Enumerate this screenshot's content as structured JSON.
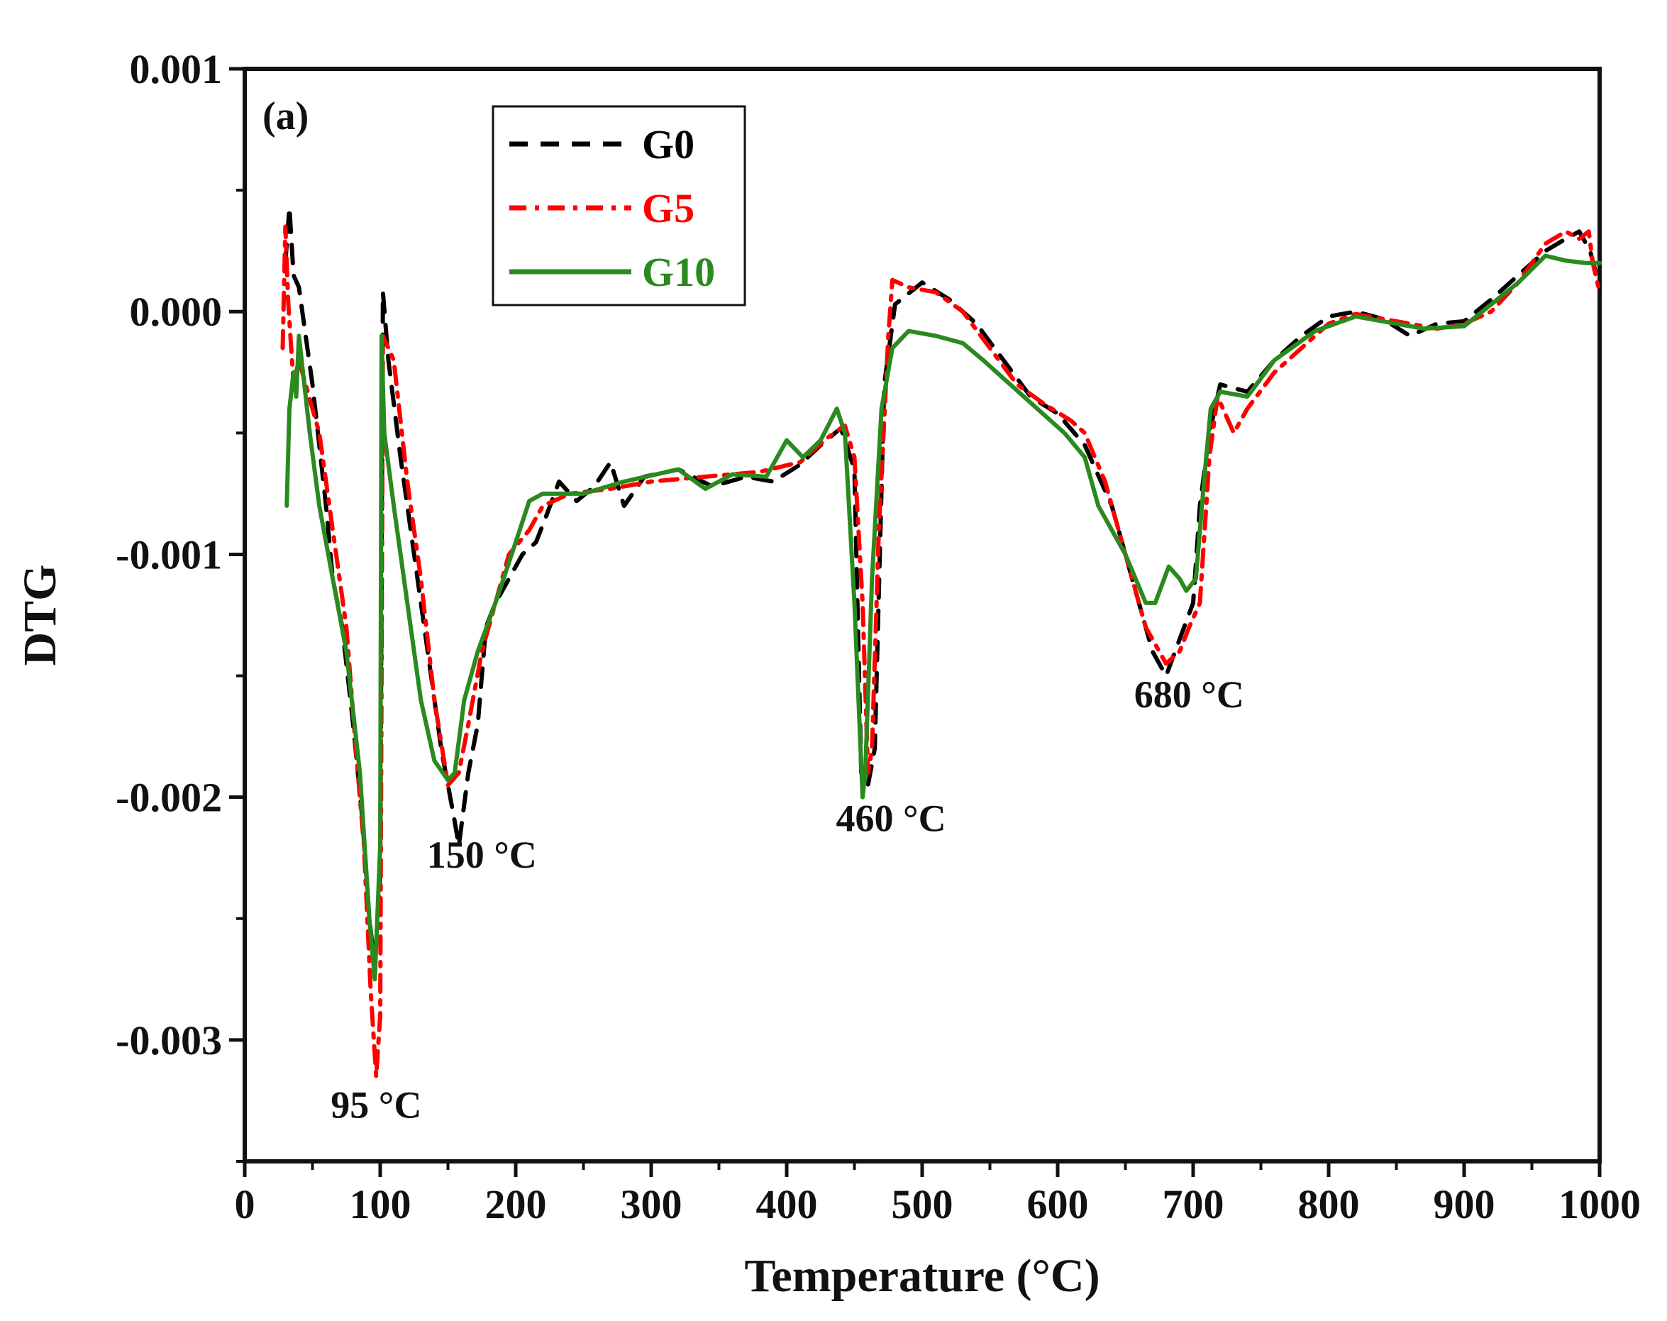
{
  "chart_data": {
    "type": "line",
    "panel_label": "(a)",
    "xlabel": "Temperature (°C)",
    "ylabel": "DTG",
    "xlim": [
      0,
      1000
    ],
    "ylim": [
      -0.0035,
      0.001
    ],
    "x_ticks": [
      0,
      100,
      200,
      300,
      400,
      500,
      600,
      700,
      800,
      900,
      1000
    ],
    "x_tick_labels": [
      "0",
      "100",
      "200",
      "300",
      "400",
      "500",
      "600",
      "700",
      "800",
      "900",
      "1000"
    ],
    "y_ticks": [
      0.001,
      0.0,
      -0.001,
      -0.002,
      -0.003
    ],
    "y_tick_labels": [
      "0.001",
      "0.000",
      "-0.001",
      "-0.002",
      "-0.003"
    ],
    "grid": false,
    "legend_position": "top-left",
    "series": [
      {
        "name": "G0",
        "color": "#000000",
        "style": "dashed",
        "points": [
          [
            30,
            0.0002
          ],
          [
            33,
            0.00043
          ],
          [
            36,
            0.00015
          ],
          [
            40,
            0.0001
          ],
          [
            45,
            -0.0001
          ],
          [
            50,
            -0.0003
          ],
          [
            55,
            -0.00055
          ],
          [
            60,
            -0.0008
          ],
          [
            65,
            -0.0011
          ],
          [
            72,
            -0.0013
          ],
          [
            80,
            -0.0017
          ],
          [
            87,
            -0.0021
          ],
          [
            92,
            -0.0025
          ],
          [
            96,
            -0.0027
          ],
          [
            100,
            -0.0023
          ],
          [
            102,
            8e-05
          ],
          [
            106,
            -0.0002
          ],
          [
            115,
            -0.0006
          ],
          [
            125,
            -0.001
          ],
          [
            135,
            -0.0014
          ],
          [
            145,
            -0.0018
          ],
          [
            155,
            -0.0021
          ],
          [
            158,
            -0.0022
          ],
          [
            165,
            -0.0019
          ],
          [
            172,
            -0.0017
          ],
          [
            178,
            -0.0013
          ],
          [
            185,
            -0.0012
          ],
          [
            195,
            -0.0011
          ],
          [
            205,
            -0.001
          ],
          [
            215,
            -0.00095
          ],
          [
            222,
            -0.00085
          ],
          [
            232,
            -0.0007
          ],
          [
            245,
            -0.00078
          ],
          [
            258,
            -0.00072
          ],
          [
            270,
            -0.00062
          ],
          [
            280,
            -0.0008
          ],
          [
            295,
            -0.00068
          ],
          [
            320,
            -0.00065
          ],
          [
            345,
            -0.00072
          ],
          [
            370,
            -0.00068
          ],
          [
            390,
            -0.0007
          ],
          [
            410,
            -0.00063
          ],
          [
            425,
            -0.00055
          ],
          [
            440,
            -0.00048
          ],
          [
            450,
            -0.00065
          ],
          [
            455,
            -0.0019
          ],
          [
            460,
            -0.00195
          ],
          [
            465,
            -0.0018
          ],
          [
            472,
            -0.0003
          ],
          [
            480,
            3e-05
          ],
          [
            500,
            0.00012
          ],
          [
            520,
            5e-05
          ],
          [
            540,
            -5e-05
          ],
          [
            560,
            -0.0002
          ],
          [
            580,
            -0.00035
          ],
          [
            600,
            -0.00042
          ],
          [
            620,
            -0.00055
          ],
          [
            640,
            -0.0008
          ],
          [
            655,
            -0.0011
          ],
          [
            670,
            -0.0014
          ],
          [
            680,
            -0.0015
          ],
          [
            690,
            -0.00135
          ],
          [
            700,
            -0.0012
          ],
          [
            705,
            -0.0008
          ],
          [
            712,
            -0.0005
          ],
          [
            720,
            -0.0003
          ],
          [
            740,
            -0.00033
          ],
          [
            760,
            -0.0002
          ],
          [
            780,
            -0.0001
          ],
          [
            800,
            -2e-05
          ],
          [
            820,
            0.0
          ],
          [
            840,
            -3e-05
          ],
          [
            860,
            -0.0001
          ],
          [
            880,
            -5e-05
          ],
          [
            900,
            -4e-05
          ],
          [
            920,
            5e-05
          ],
          [
            940,
            0.00015
          ],
          [
            960,
            0.00025
          ],
          [
            975,
            0.0003
          ],
          [
            985,
            0.00033
          ],
          [
            993,
            0.00025
          ],
          [
            1000,
            0.0001
          ]
        ]
      },
      {
        "name": "G5",
        "color": "#ff0000",
        "style": "dashdot",
        "points": [
          [
            28,
            -0.00015
          ],
          [
            30,
            0.00035
          ],
          [
            32,
            5e-05
          ],
          [
            36,
            -0.0003
          ],
          [
            40,
            -0.0002
          ],
          [
            45,
            -0.0003
          ],
          [
            55,
            -0.0005
          ],
          [
            65,
            -0.0009
          ],
          [
            75,
            -0.0013
          ],
          [
            82,
            -0.0018
          ],
          [
            88,
            -0.0022
          ],
          [
            93,
            -0.0028
          ],
          [
            97,
            -0.00315
          ],
          [
            100,
            -0.0029
          ],
          [
            102,
            -0.0001
          ],
          [
            110,
            -0.0002
          ],
          [
            120,
            -0.0007
          ],
          [
            130,
            -0.0011
          ],
          [
            140,
            -0.0016
          ],
          [
            150,
            -0.00195
          ],
          [
            158,
            -0.0019
          ],
          [
            165,
            -0.0017
          ],
          [
            175,
            -0.0014
          ],
          [
            185,
            -0.0012
          ],
          [
            195,
            -0.001
          ],
          [
            210,
            -0.0009
          ],
          [
            220,
            -0.0008
          ],
          [
            240,
            -0.00075
          ],
          [
            270,
            -0.00073
          ],
          [
            300,
            -0.0007
          ],
          [
            340,
            -0.00068
          ],
          [
            380,
            -0.00066
          ],
          [
            410,
            -0.00062
          ],
          [
            430,
            -0.00052
          ],
          [
            443,
            -0.00047
          ],
          [
            450,
            -0.0006
          ],
          [
            456,
            -0.0012
          ],
          [
            460,
            -0.0019
          ],
          [
            463,
            -0.0018
          ],
          [
            468,
            -0.0009
          ],
          [
            475,
            -0.0001
          ],
          [
            478,
            0.00013
          ],
          [
            490,
            0.0001
          ],
          [
            510,
            8e-05
          ],
          [
            530,
            0.0
          ],
          [
            550,
            -0.00015
          ],
          [
            570,
            -0.0003
          ],
          [
            590,
            -0.00038
          ],
          [
            610,
            -0.00045
          ],
          [
            620,
            -0.0005
          ],
          [
            635,
            -0.0007
          ],
          [
            650,
            -0.001
          ],
          [
            665,
            -0.0013
          ],
          [
            680,
            -0.00145
          ],
          [
            690,
            -0.0014
          ],
          [
            697,
            -0.0013
          ],
          [
            705,
            -0.0012
          ],
          [
            712,
            -0.0006
          ],
          [
            718,
            -0.00035
          ],
          [
            730,
            -0.0005
          ],
          [
            740,
            -0.0004
          ],
          [
            760,
            -0.00025
          ],
          [
            780,
            -0.00015
          ],
          [
            800,
            -5e-05
          ],
          [
            820,
            -1e-05
          ],
          [
            840,
            -3e-05
          ],
          [
            860,
            -5e-05
          ],
          [
            880,
            -7e-05
          ],
          [
            900,
            -5e-05
          ],
          [
            920,
            0.0
          ],
          [
            940,
            0.00012
          ],
          [
            960,
            0.00028
          ],
          [
            975,
            0.00033
          ],
          [
            985,
            0.0003
          ],
          [
            992,
            0.00033
          ],
          [
            995,
            0.0002
          ],
          [
            1000,
            8e-05
          ]
        ]
      },
      {
        "name": "G10",
        "color": "#2a8a1e",
        "style": "solid",
        "points": [
          [
            31,
            -0.0008
          ],
          [
            33,
            -0.0004
          ],
          [
            36,
            -0.00025
          ],
          [
            38,
            -0.00035
          ],
          [
            40,
            -0.0001
          ],
          [
            43,
            -0.00025
          ],
          [
            48,
            -0.0005
          ],
          [
            55,
            -0.0008
          ],
          [
            65,
            -0.0011
          ],
          [
            75,
            -0.0014
          ],
          [
            85,
            -0.0019
          ],
          [
            92,
            -0.0025
          ],
          [
            96,
            -0.00275
          ],
          [
            100,
            -0.0022
          ],
          [
            101,
            -0.0001
          ],
          [
            103,
            -0.0005
          ],
          [
            110,
            -0.0008
          ],
          [
            120,
            -0.0012
          ],
          [
            130,
            -0.0016
          ],
          [
            140,
            -0.00185
          ],
          [
            150,
            -0.00193
          ],
          [
            155,
            -0.0019
          ],
          [
            162,
            -0.0016
          ],
          [
            172,
            -0.0014
          ],
          [
            185,
            -0.0012
          ],
          [
            200,
            -0.00095
          ],
          [
            210,
            -0.00078
          ],
          [
            220,
            -0.00075
          ],
          [
            250,
            -0.00075
          ],
          [
            280,
            -0.0007
          ],
          [
            320,
            -0.00065
          ],
          [
            340,
            -0.00073
          ],
          [
            360,
            -0.00067
          ],
          [
            385,
            -0.00068
          ],
          [
            400,
            -0.00053
          ],
          [
            412,
            -0.0006
          ],
          [
            425,
            -0.00053
          ],
          [
            437,
            -0.0004
          ],
          [
            443,
            -0.0005
          ],
          [
            450,
            -0.0012
          ],
          [
            456,
            -0.002
          ],
          [
            458,
            -0.0019
          ],
          [
            463,
            -0.0011
          ],
          [
            470,
            -0.0004
          ],
          [
            478,
            -0.00015
          ],
          [
            490,
            -8e-05
          ],
          [
            510,
            -0.0001
          ],
          [
            530,
            -0.00013
          ],
          [
            545,
            -0.0002
          ],
          [
            565,
            -0.0003
          ],
          [
            585,
            -0.0004
          ],
          [
            605,
            -0.0005
          ],
          [
            620,
            -0.0006
          ],
          [
            630,
            -0.0008
          ],
          [
            650,
            -0.001
          ],
          [
            665,
            -0.0012
          ],
          [
            672,
            -0.0012
          ],
          [
            682,
            -0.00105
          ],
          [
            690,
            -0.0011
          ],
          [
            695,
            -0.00115
          ],
          [
            702,
            -0.0011
          ],
          [
            708,
            -0.0007
          ],
          [
            713,
            -0.0004
          ],
          [
            720,
            -0.00033
          ],
          [
            740,
            -0.00035
          ],
          [
            760,
            -0.0002
          ],
          [
            790,
            -8e-05
          ],
          [
            820,
            -2e-05
          ],
          [
            850,
            -5e-05
          ],
          [
            870,
            -7e-05
          ],
          [
            900,
            -6e-05
          ],
          [
            920,
            3e-05
          ],
          [
            940,
            0.00012
          ],
          [
            960,
            0.00023
          ],
          [
            975,
            0.00021
          ],
          [
            990,
            0.0002
          ],
          [
            1000,
            0.0002
          ]
        ]
      }
    ],
    "annotations": [
      {
        "text": "95 °C",
        "x": 97,
        "y": -0.00332
      },
      {
        "text": "150 °C",
        "x": 175,
        "y": -0.00229
      },
      {
        "text": "460 °C",
        "x": 477,
        "y": -0.00214
      },
      {
        "text": "680 °C",
        "x": 697,
        "y": -0.00163
      }
    ]
  }
}
